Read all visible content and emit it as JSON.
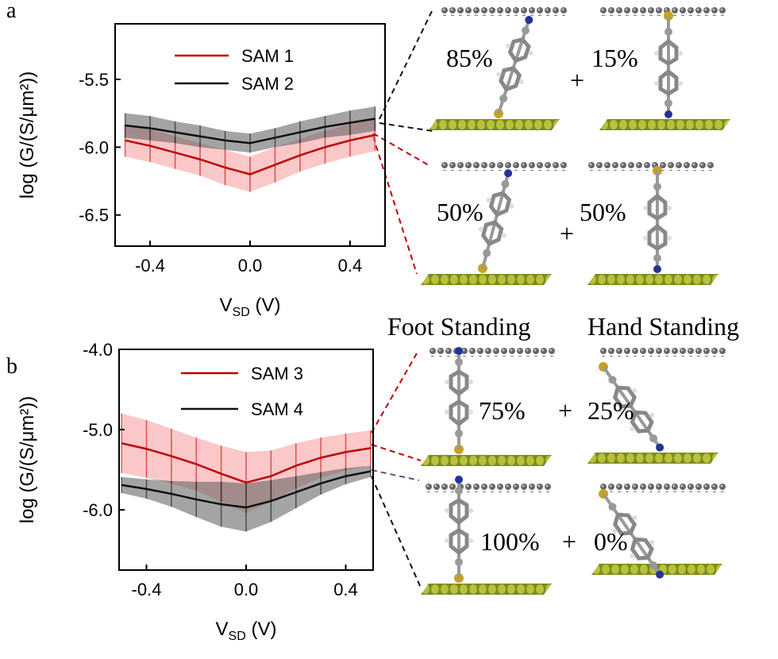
{
  "panel_labels": [
    "a",
    "b"
  ],
  "chart_data": [
    {
      "type": "line",
      "x": [
        -0.5,
        -0.4,
        -0.3,
        -0.2,
        -0.1,
        0,
        0.1,
        0.2,
        0.3,
        0.4,
        0.5
      ],
      "series": [
        {
          "name": "SAM 1",
          "color": "#c00000",
          "band_color": "#f59a9a",
          "values": [
            -5.95,
            -5.99,
            -6.04,
            -6.09,
            -6.15,
            -6.2,
            -6.13,
            -6.06,
            -6.0,
            -5.95,
            -5.91
          ],
          "errors": [
            0.12,
            0.12,
            0.12,
            0.12,
            0.13,
            0.13,
            0.13,
            0.12,
            0.12,
            0.12,
            0.12
          ]
        },
        {
          "name": "SAM 2",
          "color": "#111111",
          "band_color": "#5a5a5a",
          "values": [
            -5.84,
            -5.86,
            -5.89,
            -5.92,
            -5.95,
            -5.97,
            -5.93,
            -5.89,
            -5.85,
            -5.82,
            -5.79
          ],
          "errors": [
            0.09,
            0.09,
            0.08,
            0.08,
            0.07,
            0.07,
            0.07,
            0.08,
            0.08,
            0.09,
            0.09
          ]
        }
      ],
      "xlim": [
        -0.54,
        0.54
      ],
      "ylim": [
        -6.73,
        -5.09
      ],
      "xticks": [
        -0.4,
        {
          "value": 0,
          "label": "0.0"
        },
        0.4
      ],
      "yticks": [
        -6.5,
        {
          "value": -6,
          "label": "-6.0"
        },
        -5.5
      ],
      "xlabel": "V",
      "xlabel_sub": "SD",
      "xlabel_unit": " (V)",
      "ylabel": "log (G/(S/μm²))"
    },
    {
      "type": "line",
      "x": [
        -0.5,
        -0.4,
        -0.3,
        -0.2,
        -0.1,
        0,
        0.1,
        0.2,
        0.3,
        0.4,
        0.5
      ],
      "series": [
        {
          "name": "SAM 3",
          "color": "#c00000",
          "band_color": "#f59a9a",
          "values": [
            -5.17,
            -5.24,
            -5.33,
            -5.43,
            -5.55,
            -5.66,
            -5.58,
            -5.45,
            -5.35,
            -5.28,
            -5.23
          ],
          "errors": [
            0.37,
            0.36,
            0.34,
            0.33,
            0.35,
            0.38,
            0.32,
            0.28,
            0.25,
            0.23,
            0.22
          ]
        },
        {
          "name": "SAM 4",
          "color": "#111111",
          "band_color": "#5a5a5a",
          "values": [
            -5.69,
            -5.74,
            -5.8,
            -5.87,
            -5.93,
            -5.97,
            -5.89,
            -5.78,
            -5.67,
            -5.58,
            -5.52
          ],
          "errors": [
            0.1,
            0.12,
            0.16,
            0.22,
            0.28,
            0.3,
            0.26,
            0.2,
            0.14,
            0.1,
            0.07
          ]
        }
      ],
      "xlim": [
        -0.51,
        0.51
      ],
      "ylim": [
        -6.75,
        -4.0
      ],
      "xticks": [
        -0.4,
        {
          "value": 0,
          "label": "0.0"
        },
        0.4
      ],
      "yticks": [
        {
          "value": -6,
          "label": "-6.0"
        },
        {
          "value": -5,
          "label": "-5.0"
        },
        {
          "value": -4,
          "label": "-4.0"
        }
      ],
      "xlabel": "V",
      "xlabel_sub": "SD",
      "xlabel_unit": " (V)",
      "ylabel": "log (G/(S/μm²))"
    }
  ],
  "diagram": {
    "labels": [
      "Foot Standing",
      "Hand Standing"
    ],
    "percentages": [
      [
        "85%",
        "15%"
      ],
      [
        "50%",
        "50%"
      ],
      [
        "75%",
        "25%"
      ],
      [
        "100%",
        "0%"
      ]
    ],
    "plus": "+"
  }
}
